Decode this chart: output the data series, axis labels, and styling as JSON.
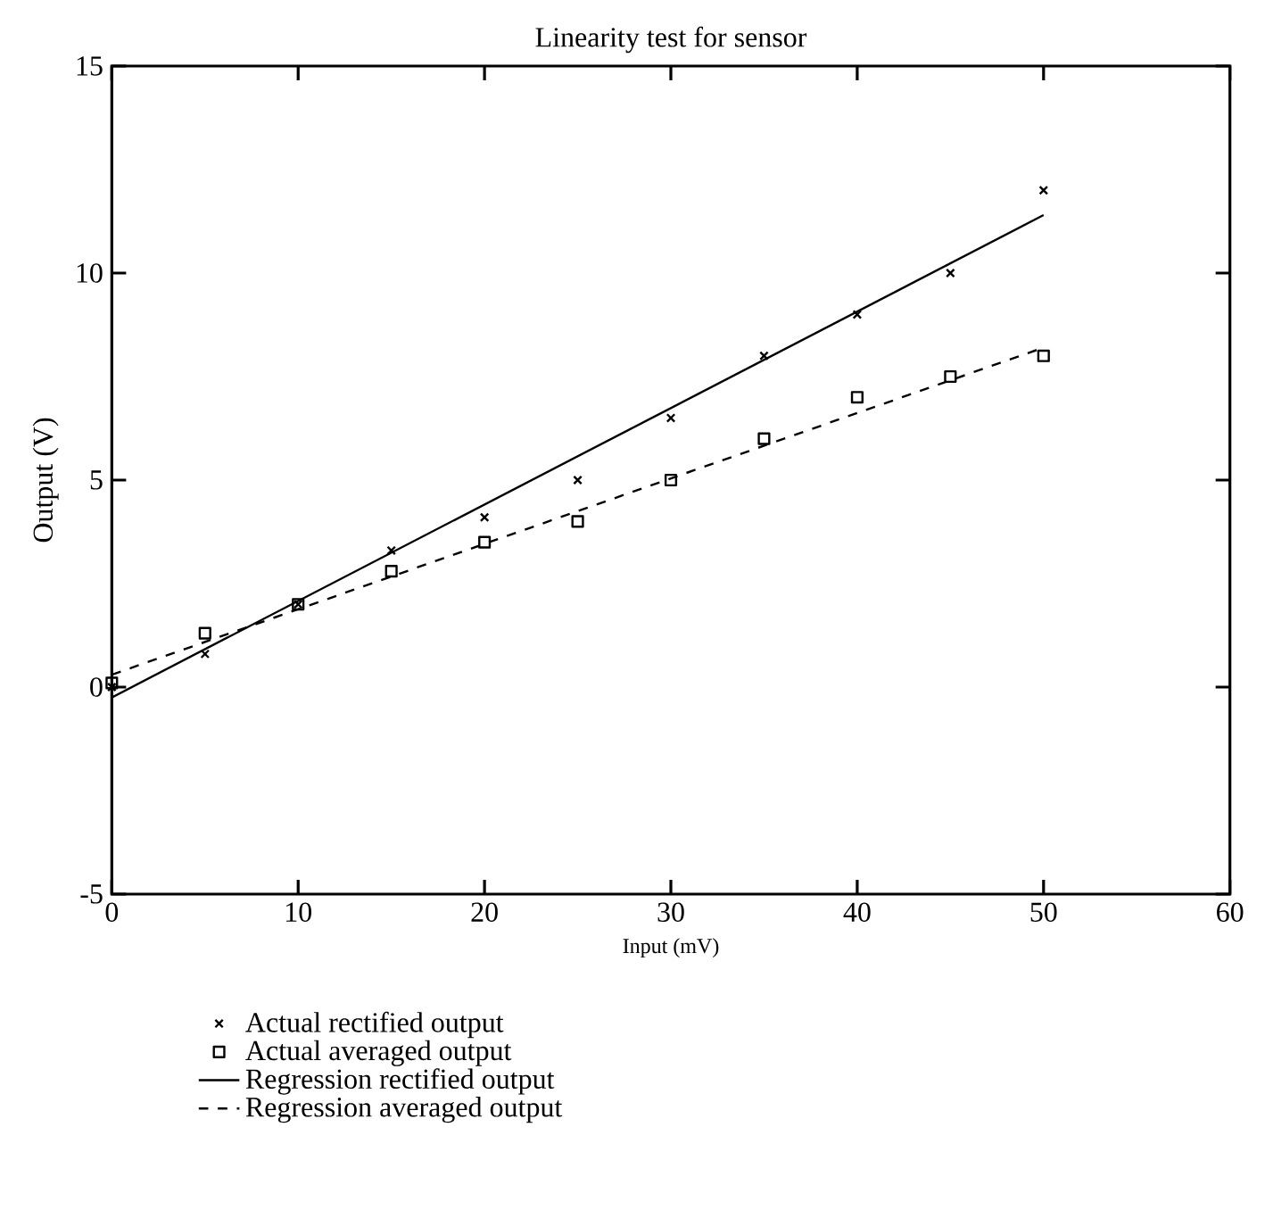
{
  "chart_data": {
    "type": "scatter",
    "title": "Linearity test for sensor",
    "xlabel": "Input (mV)",
    "ylabel": "Output (V)",
    "xlim": [
      0,
      60
    ],
    "xticks": [
      0,
      10,
      20,
      30,
      40,
      50,
      60
    ],
    "ylim": [
      -5,
      15
    ],
    "yticks": [
      -5,
      0,
      5,
      10,
      15
    ],
    "grid": false,
    "legend": "bottom",
    "series": [
      {
        "name": "Actual rectified output",
        "marker": "cross",
        "color": "#000000",
        "x": [
          0,
          5,
          10,
          15,
          20,
          25,
          30,
          35,
          40,
          45,
          50
        ],
        "values": [
          0,
          0.8,
          2.0,
          3.3,
          4.1,
          5.0,
          6.5,
          8.0,
          9.0,
          10.0,
          12.0
        ]
      },
      {
        "name": "Actual averaged output",
        "marker": "square",
        "color": "#000000",
        "x": [
          0,
          5,
          10,
          15,
          20,
          25,
          30,
          35,
          40,
          45,
          50
        ],
        "values": [
          0.1,
          1.3,
          2.0,
          2.8,
          3.5,
          4.0,
          5.0,
          6.0,
          7.0,
          7.5,
          8.0
        ]
      },
      {
        "name": "Regression rectified output",
        "type": "line",
        "marker": "none",
        "line_style": "solid",
        "color": "#000000",
        "x": [
          0,
          50
        ],
        "values": [
          -0.25,
          11.4
        ]
      },
      {
        "name": "Regression averaged output",
        "type": "line",
        "marker": "none",
        "line_style": "dashed",
        "color": "#000000",
        "x": [
          0,
          50
        ],
        "values": [
          0.3,
          8.2
        ]
      }
    ]
  }
}
